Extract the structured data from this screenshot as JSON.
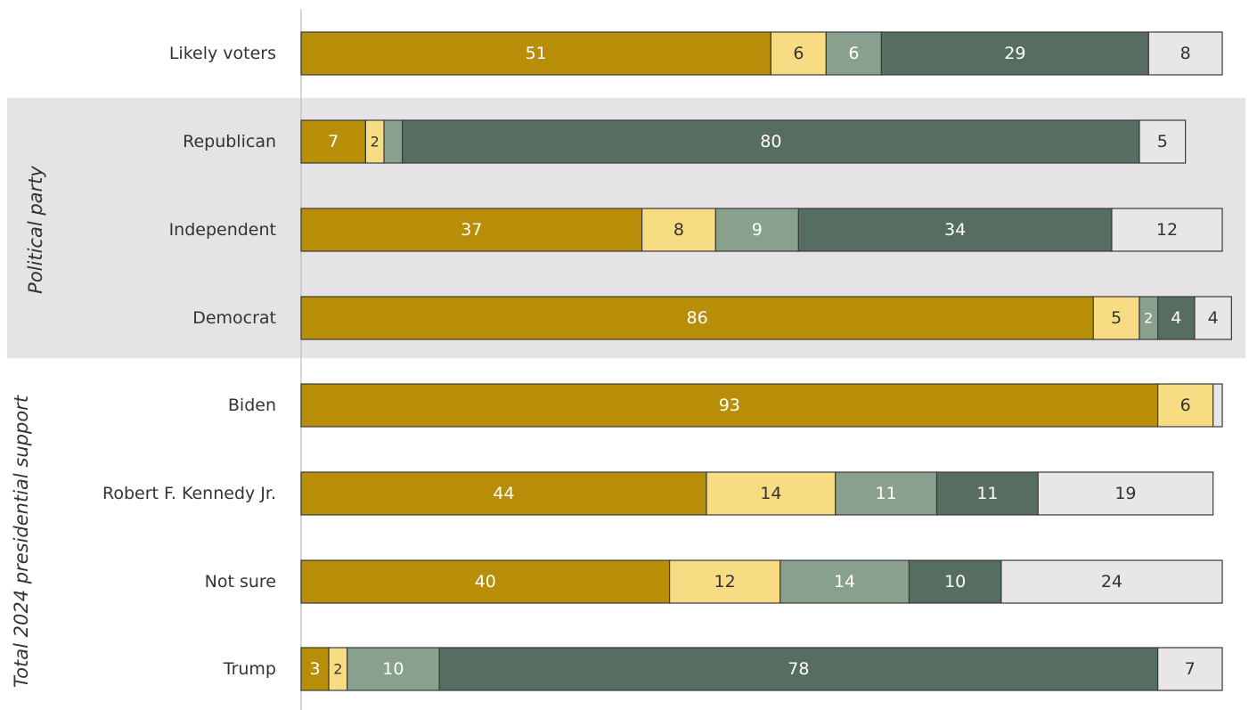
{
  "chart_data": {
    "type": "bar",
    "orientation": "horizontal",
    "stacked": true,
    "xlim": [
      0,
      100
    ],
    "categories": [
      "Likely voters",
      "Republican",
      "Independent",
      "Democrat",
      "Biden",
      "Robert F. Kennedy Jr.",
      "Not sure",
      "Trump"
    ],
    "groups": [
      {
        "label": "Political party",
        "categories": [
          "Republican",
          "Independent",
          "Democrat"
        ]
      },
      {
        "label": "Total 2024 presidential support",
        "categories": [
          "Biden",
          "Robert F. Kennedy Jr.",
          "Not sure",
          "Trump"
        ]
      }
    ],
    "series": [
      {
        "color": "#b88e08",
        "text_color": "#ffffff",
        "values": [
          51,
          7,
          37,
          86,
          93,
          44,
          40,
          3
        ],
        "labels": [
          "51",
          "7",
          "37",
          "86",
          "93",
          "44",
          "40",
          "3"
        ]
      },
      {
        "color": "#f8dc84",
        "text_color": "#333333",
        "values": [
          6,
          2,
          8,
          5,
          6,
          14,
          12,
          2
        ],
        "labels": [
          "6",
          "2",
          "8",
          "5",
          "6",
          "14",
          "12",
          "2"
        ]
      },
      {
        "color": "#8aa08f",
        "text_color": "#ffffff",
        "values": [
          6,
          2,
          9,
          2,
          0,
          11,
          14,
          10
        ],
        "labels": [
          "6",
          "",
          "9",
          "2",
          "",
          "11",
          "14",
          "10"
        ]
      },
      {
        "color": "#576d61",
        "text_color": "#ffffff",
        "values": [
          29,
          80,
          34,
          4,
          0,
          11,
          10,
          78
        ],
        "labels": [
          "29",
          "80",
          "34",
          "4",
          "",
          "11",
          "10",
          "78"
        ]
      },
      {
        "color": "#e8e6e8",
        "text_color": "#333333",
        "values": [
          8,
          5,
          12,
          4,
          1,
          19,
          24,
          7
        ],
        "labels": [
          "8",
          "5",
          "12",
          "4",
          "",
          "19",
          "24",
          "7"
        ]
      }
    ]
  },
  "colors": {
    "group_band": "#e5e3e5",
    "bar_outline": "#3a3a3a",
    "axis_line": "#c8c8c8",
    "label_text": "#333333"
  }
}
